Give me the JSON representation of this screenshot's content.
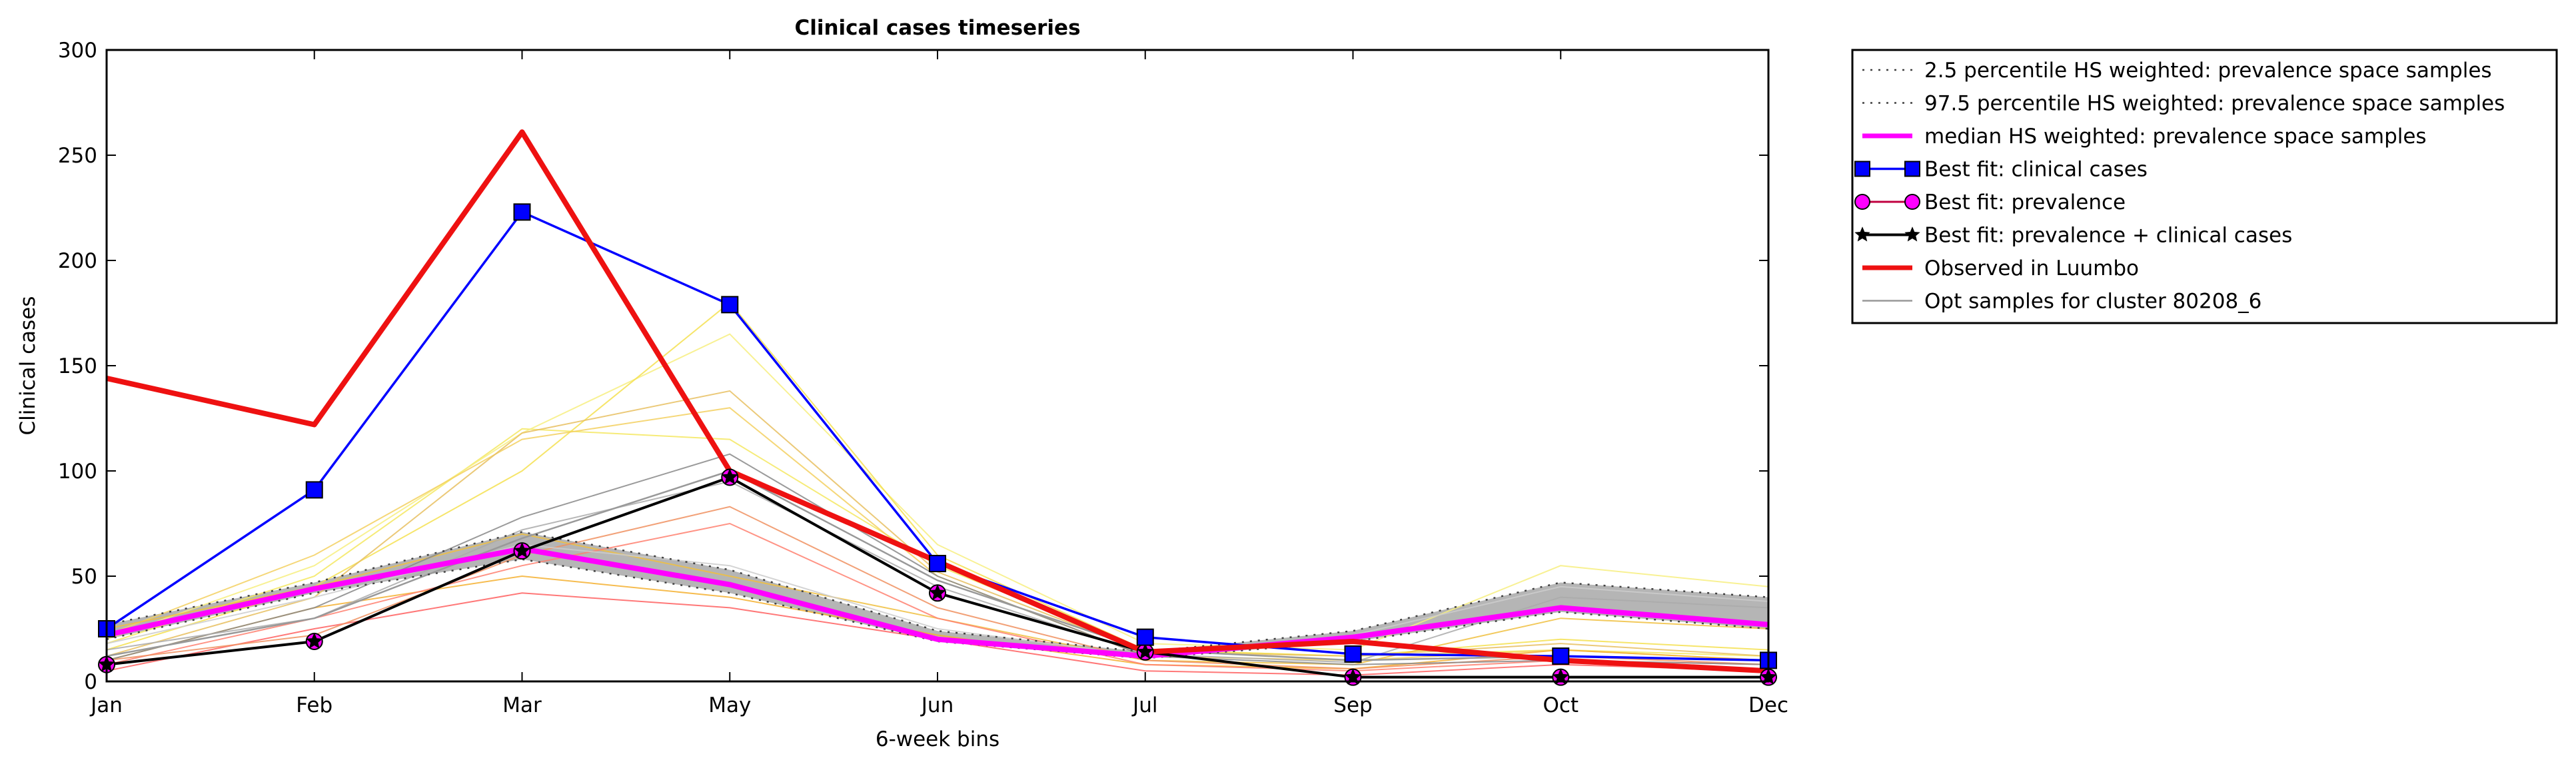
{
  "chart_data": {
    "type": "line",
    "title": "Clinical cases timeseries",
    "xlabel": "6-week bins",
    "ylabel": "Clinical cases",
    "ylim": [
      0,
      300
    ],
    "yticks": [
      0,
      50,
      100,
      150,
      200,
      250,
      300
    ],
    "categories": [
      "Jan",
      "Feb",
      "Mar",
      "May",
      "Jun",
      "Jul",
      "Sep",
      "Oct",
      "Dec"
    ],
    "legend_position": "outside-right",
    "series": [
      {
        "name": "2.5 percentile HS weighted: prevalence space samples",
        "color": "#404040",
        "style": "dotted",
        "values": [
          20,
          42,
          58,
          42,
          19,
          11,
          19,
          33,
          25
        ]
      },
      {
        "name": "97.5 percentile HS weighted: prevalence space samples",
        "color": "#404040",
        "style": "dotted",
        "values": [
          27,
          47,
          71,
          53,
          24,
          14,
          24,
          47,
          40
        ]
      },
      {
        "name": "median HS weighted: prevalence space samples",
        "color": "#ff00ff",
        "style": "solid",
        "values": [
          22,
          44,
          63,
          46,
          20,
          12,
          21,
          35,
          27
        ]
      },
      {
        "name": "Best fit: clinical cases",
        "color": "#0000ff",
        "style": "solid",
        "marker": "square",
        "values": [
          25,
          91,
          223,
          179,
          56,
          21,
          13,
          12,
          10
        ]
      },
      {
        "name": "Best fit: prevalence",
        "color": "#c00040",
        "style": "solid",
        "marker": "circle",
        "values": [
          8,
          19,
          62,
          97,
          42,
          14,
          2,
          2,
          2
        ]
      },
      {
        "name": "Best fit: prevalence + clinical cases",
        "color": "#000000",
        "style": "solid",
        "marker": "star",
        "values": [
          8,
          19,
          62,
          97,
          42,
          14,
          2,
          2,
          2
        ]
      },
      {
        "name": "Observed in Luumbo",
        "color": "#ee1111",
        "style": "solid",
        "values": [
          144,
          122,
          261,
          100,
          57,
          14,
          19,
          10,
          5
        ]
      },
      {
        "name": "Opt samples for cluster 80208_6",
        "color": "#999999",
        "style": "solid",
        "values": [
          12,
          30,
          68,
          100,
          48,
          15,
          10,
          12,
          10
        ]
      }
    ],
    "sample_lines": [
      {
        "color": "#f5e860",
        "values": [
          18,
          50,
          120,
          115,
          55,
          15,
          12,
          15,
          12
        ]
      },
      {
        "color": "#f7ee80",
        "values": [
          20,
          55,
          118,
          165,
          65,
          18,
          15,
          55,
          45
        ]
      },
      {
        "color": "#f5e050",
        "values": [
          15,
          45,
          100,
          180,
          60,
          15,
          12,
          20,
          15
        ]
      },
      {
        "color": "#f3d060",
        "values": [
          22,
          60,
          115,
          130,
          50,
          12,
          10,
          15,
          10
        ]
      },
      {
        "color": "#e8c060",
        "values": [
          12,
          40,
          118,
          138,
          52,
          14,
          12,
          18,
          12
        ]
      },
      {
        "color": "#f0c040",
        "values": [
          25,
          45,
          70,
          50,
          30,
          10,
          8,
          30,
          25
        ]
      },
      {
        "color": "#f4b030",
        "values": [
          10,
          35,
          50,
          40,
          22,
          8,
          6,
          15,
          10
        ]
      },
      {
        "color": "#ff6060",
        "values": [
          5,
          25,
          42,
          35,
          20,
          5,
          3,
          8,
          5
        ]
      },
      {
        "color": "#ff8070",
        "values": [
          8,
          30,
          55,
          75,
          30,
          8,
          5,
          10,
          8
        ]
      },
      {
        "color": "#f09060",
        "values": [
          10,
          22,
          60,
          83,
          35,
          10,
          6,
          12,
          8
        ]
      },
      {
        "color": "#888888",
        "values": [
          10,
          35,
          78,
          108,
          50,
          12,
          8,
          10,
          8
        ]
      },
      {
        "color": "#aaaaaa",
        "values": [
          15,
          30,
          72,
          95,
          45,
          13,
          9,
          40,
          35
        ]
      },
      {
        "color": "#cccccc",
        "values": [
          18,
          40,
          65,
          55,
          25,
          12,
          22,
          45,
          38
        ]
      }
    ]
  }
}
